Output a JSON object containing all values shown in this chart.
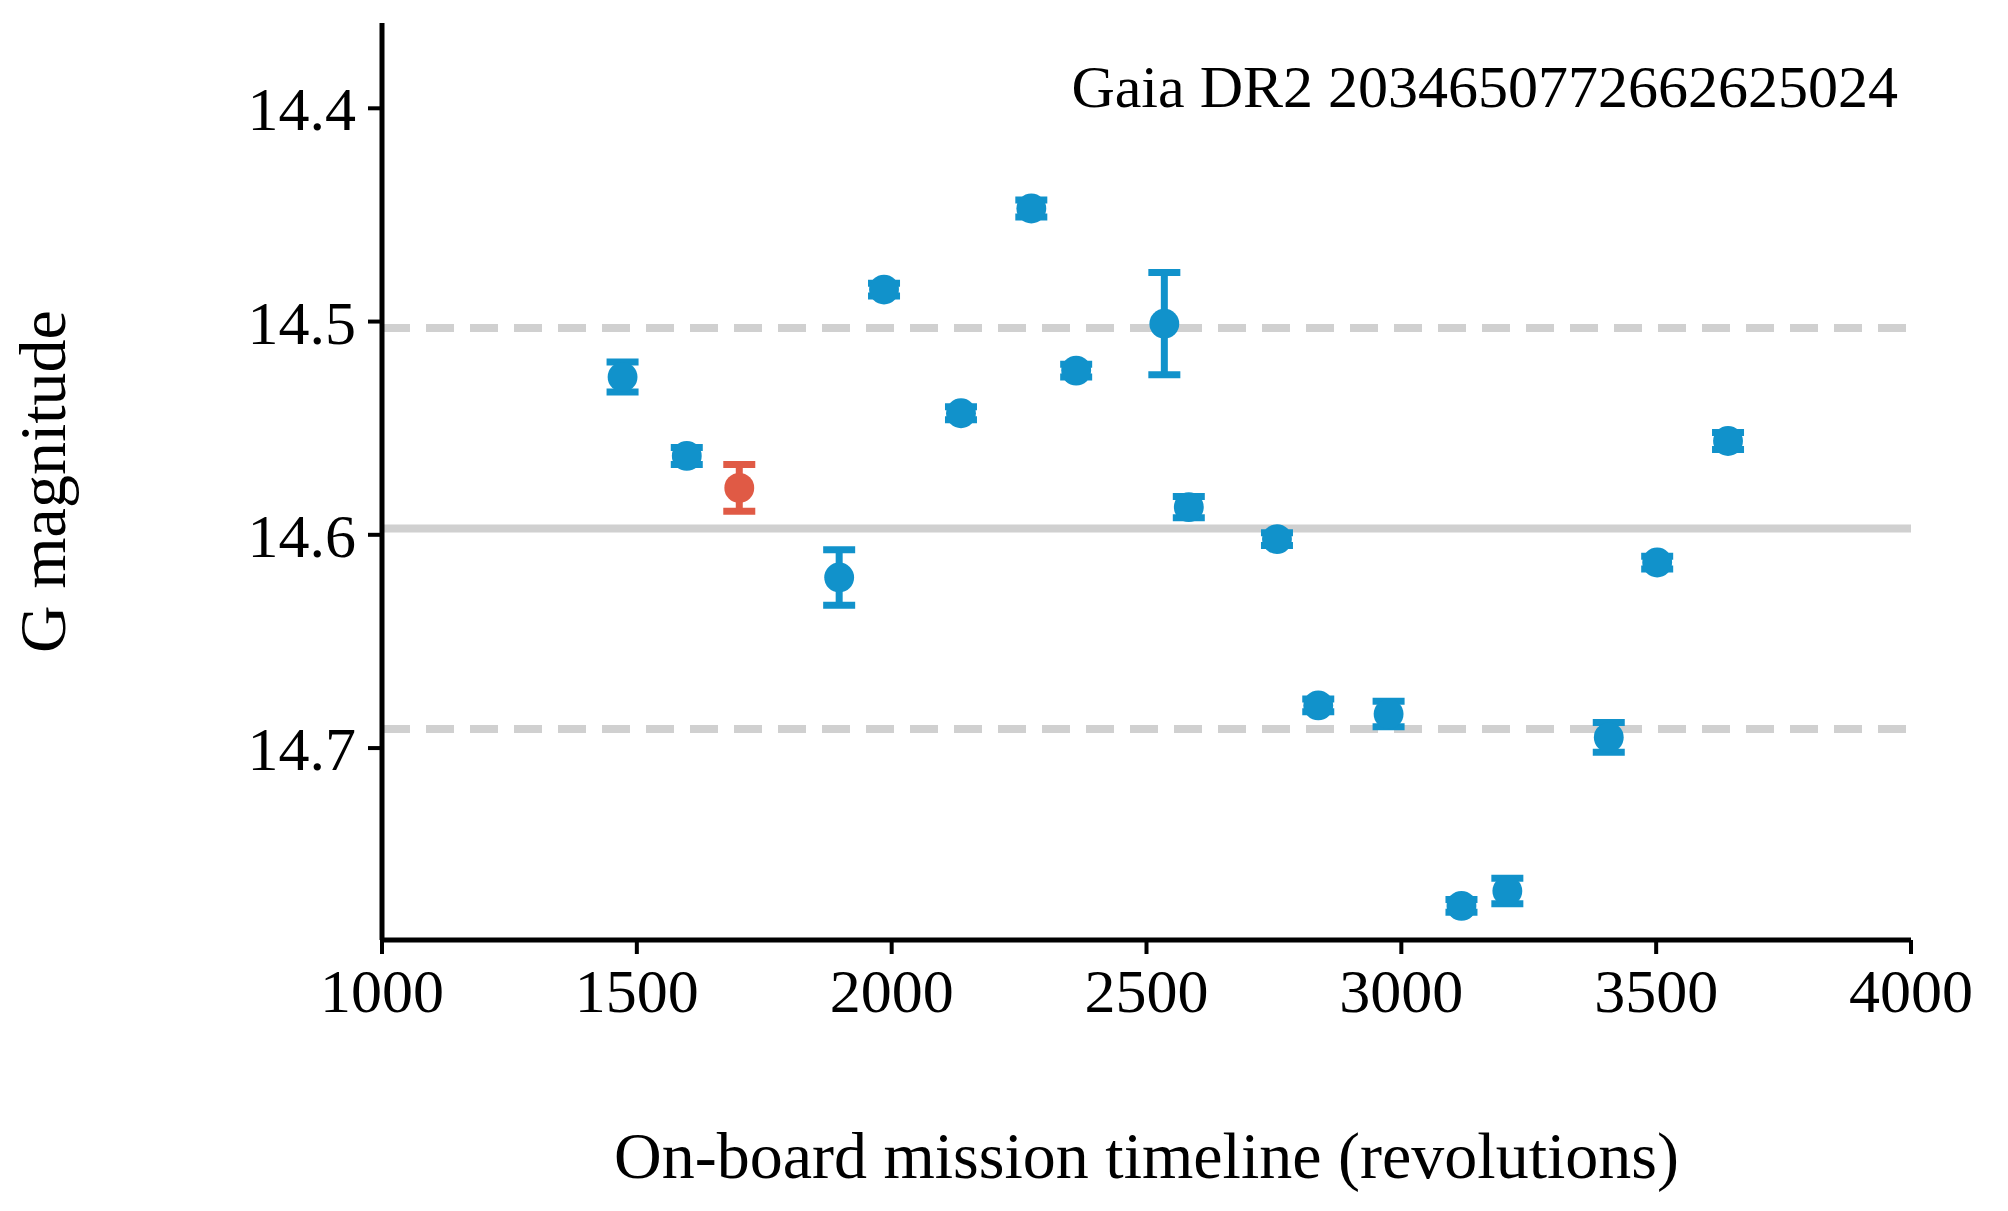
{
  "chart_data": {
    "type": "scatter",
    "xlabel": "On-board mission timeline (revolutions)",
    "ylabel": "G magnitude",
    "annotations": [
      "Gaia DR2 2034650772662625024"
    ],
    "series": [
      {
        "color": "#1192cb",
        "x": [
          1472,
          1598,
          1897,
          1985,
          2136,
          2274,
          2362,
          2535,
          2583,
          2756,
          2837,
          2975,
          3118,
          3208,
          3407,
          3502,
          3641
        ],
        "values": [
          14.526,
          14.563,
          14.62,
          14.485,
          14.543,
          14.447,
          14.523,
          14.501,
          14.587,
          14.602,
          14.68,
          14.684,
          14.774,
          14.767,
          14.695,
          14.613,
          14.556
        ],
        "errors": [
          0.007,
          0.004,
          0.013,
          0.003,
          0.003,
          0.004,
          0.003,
          0.024,
          0.005,
          0.003,
          0.003,
          0.006,
          0.003,
          0.006,
          0.007,
          0.003,
          0.004
        ]
      },
      {
        "color": "#e05a45",
        "x": [
          1701
        ],
        "values": [
          14.578
        ],
        "errors": [
          0.011
        ]
      }
    ],
    "xlim": [
      1000,
      4000
    ],
    "xticks": [
      1000,
      1500,
      2000,
      2500,
      3000,
      3500,
      4000
    ],
    "ylim": [
      14.79,
      14.36
    ],
    "yticks": [
      14.4,
      14.5,
      14.6,
      14.7
    ],
    "ref_lines": [
      {
        "axis": "y",
        "value": 14.597,
        "color": "#d0d0d0",
        "line_style": "solid"
      },
      {
        "axis": "y",
        "value": 14.503,
        "color": "#d0d0d0",
        "line_style": "dashed"
      },
      {
        "axis": "y",
        "value": 14.691,
        "color": "#d0d0d0",
        "line_style": "dashed"
      }
    ],
    "marker": "circle",
    "grid": false,
    "legend": false
  }
}
